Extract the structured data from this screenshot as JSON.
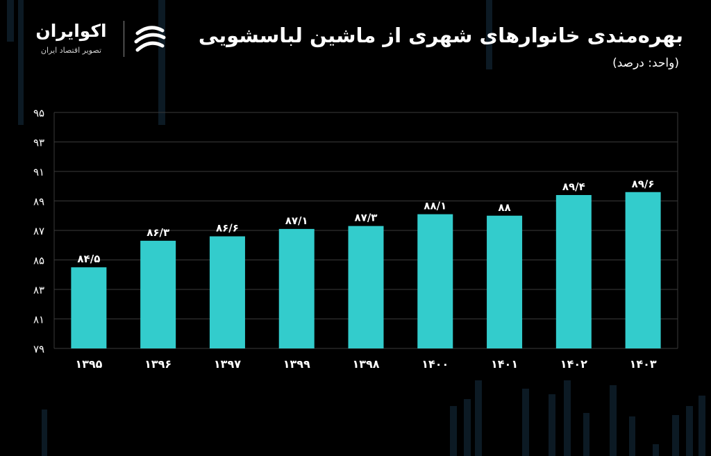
{
  "header": {
    "title": "بهره‌مندی خانوارهای شهری از ماشین لباسشویی",
    "unit": "(واحد: درصد)"
  },
  "brand": {
    "name": "اکوایران",
    "tagline": "تصویر اقتصاد ایران",
    "logo_icon": "ecoiran-logo-icon"
  },
  "colors": {
    "background": "#000000",
    "bar": "#33cccc",
    "grid": "#3a3a3a",
    "text": "#ffffff",
    "decor": "#0c1a24"
  },
  "chart_data": {
    "type": "bar",
    "title": "بهره‌مندی خانوارهای شهری از ماشین لباسشویی",
    "ylabel": "(واحد: درصد)",
    "categories": [
      "۱۳۹۵",
      "۱۳۹۶",
      "۱۳۹۷",
      "۱۳۹۹",
      "۱۳۹۸",
      "۱۴۰۰",
      "۱۴۰۱",
      "۱۴۰۲",
      "۱۴۰۳"
    ],
    "values": [
      84.5,
      86.3,
      86.6,
      87.1,
      87.3,
      88.1,
      88,
      89.4,
      89.6
    ],
    "value_labels": [
      "۸۴/۵",
      "۸۶/۳",
      "۸۶/۶",
      "۸۷/۱",
      "۸۷/۳",
      "۸۸/۱",
      "۸۸",
      "۸۹/۴",
      "۸۹/۶"
    ],
    "ylim": [
      79,
      95
    ],
    "yticks": [
      79,
      81,
      83,
      85,
      87,
      89,
      91,
      93,
      95
    ],
    "ytick_labels": [
      "۷۹",
      "۸۱",
      "۸۳",
      "۸۵",
      "۸۷",
      "۸۹",
      "۹۱",
      "۹۳",
      "۹۵"
    ],
    "grid": true,
    "legend": "none"
  }
}
